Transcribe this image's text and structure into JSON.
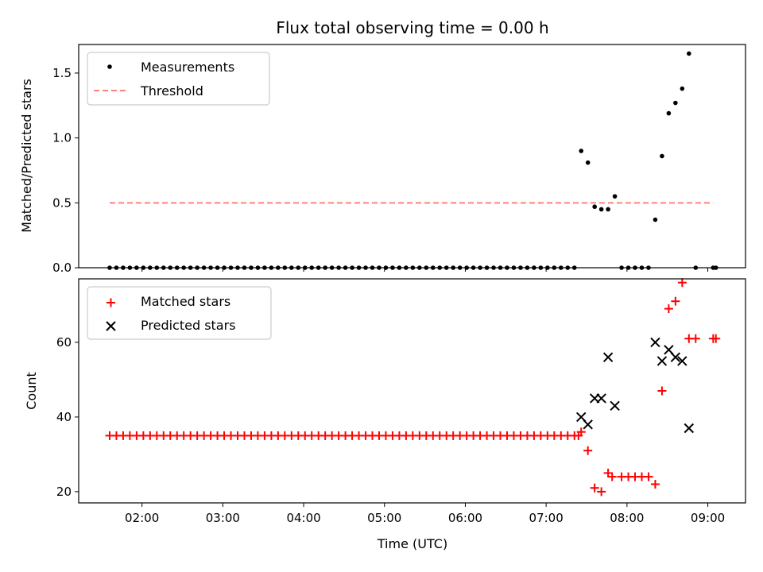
{
  "chart_data": [
    {
      "type": "scatter",
      "title": "Flux total observing time = 0.00 h",
      "xlabel": "",
      "ylabel": "Matched/Predicted stars",
      "xlim": [
        "01:13",
        "09:28"
      ],
      "ylim": [
        0,
        1.72
      ],
      "yticks": [
        "0.0",
        "0.5",
        "1.0",
        "1.5"
      ],
      "legend": "top-left",
      "colors": {
        "measurements": "#000000",
        "threshold": "#ff7f7f"
      },
      "series": [
        {
          "name": "Measurements",
          "marker": "dot",
          "x_zero": [
            "01:36",
            "01:41",
            "01:46",
            "01:51",
            "01:56",
            "02:01",
            "02:06",
            "02:11",
            "02:16",
            "02:21",
            "02:26",
            "02:31",
            "02:36",
            "02:41",
            "02:46",
            "02:51",
            "02:56",
            "03:01",
            "03:06",
            "03:11",
            "03:16",
            "03:21",
            "03:26",
            "03:31",
            "03:36",
            "03:41",
            "03:46",
            "03:51",
            "03:56",
            "04:01",
            "04:06",
            "04:11",
            "04:16",
            "04:21",
            "04:26",
            "04:31",
            "04:36",
            "04:41",
            "04:46",
            "04:51",
            "04:56",
            "05:01",
            "05:06",
            "05:11",
            "05:16",
            "05:21",
            "05:26",
            "05:31",
            "05:36",
            "05:41",
            "05:46",
            "05:51",
            "05:56",
            "06:01",
            "06:06",
            "06:11",
            "06:16",
            "06:21",
            "06:26",
            "06:31",
            "06:36",
            "06:41",
            "06:46",
            "06:51",
            "06:56",
            "07:01",
            "07:06",
            "07:11",
            "07:16",
            "07:21",
            "07:56",
            "08:01",
            "08:06",
            "08:11",
            "08:16",
            "08:51",
            "09:04",
            "09:06"
          ],
          "points": [
            {
              "x": "07:26",
              "y": 0.9
            },
            {
              "x": "07:31",
              "y": 0.81
            },
            {
              "x": "07:36",
              "y": 0.47
            },
            {
              "x": "07:41",
              "y": 0.45
            },
            {
              "x": "07:46",
              "y": 0.45
            },
            {
              "x": "07:51",
              "y": 0.55
            },
            {
              "x": "08:21",
              "y": 0.37
            },
            {
              "x": "08:26",
              "y": 0.86
            },
            {
              "x": "08:31",
              "y": 1.19
            },
            {
              "x": "08:36",
              "y": 1.27
            },
            {
              "x": "08:41",
              "y": 1.38
            },
            {
              "x": "08:46",
              "y": 1.65
            }
          ]
        },
        {
          "name": "Threshold",
          "marker": "dashed-line",
          "x": [
            "01:36",
            "09:04"
          ],
          "y": [
            0.5,
            0.5
          ]
        }
      ]
    },
    {
      "type": "scatter",
      "title": "",
      "xlabel": "Time (UTC)",
      "ylabel": "Count",
      "xlim": [
        "01:13",
        "09:28"
      ],
      "ylim": [
        17,
        77
      ],
      "yticks": [
        "20",
        "40",
        "60"
      ],
      "xticks": [
        "02:00",
        "03:00",
        "04:00",
        "05:00",
        "06:00",
        "07:00",
        "08:00",
        "09:00"
      ],
      "legend": "top-left",
      "colors": {
        "matched": "#ff0000",
        "predicted": "#000000"
      },
      "series": [
        {
          "name": "Matched stars",
          "marker": "plus",
          "baseline_value": 35,
          "baseline_x": [
            "01:36",
            "01:41",
            "01:46",
            "01:51",
            "01:56",
            "02:01",
            "02:06",
            "02:11",
            "02:16",
            "02:21",
            "02:26",
            "02:31",
            "02:36",
            "02:41",
            "02:46",
            "02:51",
            "02:56",
            "03:01",
            "03:06",
            "03:11",
            "03:16",
            "03:21",
            "03:26",
            "03:31",
            "03:36",
            "03:41",
            "03:46",
            "03:51",
            "03:56",
            "04:01",
            "04:06",
            "04:11",
            "04:16",
            "04:21",
            "04:26",
            "04:31",
            "04:36",
            "04:41",
            "04:46",
            "04:51",
            "04:56",
            "05:01",
            "05:06",
            "05:11",
            "05:16",
            "05:21",
            "05:26",
            "05:31",
            "05:36",
            "05:41",
            "05:46",
            "05:51",
            "05:56",
            "06:01",
            "06:06",
            "06:11",
            "06:16",
            "06:21",
            "06:26",
            "06:31",
            "06:36",
            "06:41",
            "06:46",
            "06:51",
            "06:56",
            "07:01",
            "07:06",
            "07:11",
            "07:16",
            "07:21",
            "07:24"
          ],
          "points": [
            {
              "x": "07:26",
              "y": 36
            },
            {
              "x": "07:31",
              "y": 31
            },
            {
              "x": "07:36",
              "y": 21
            },
            {
              "x": "07:41",
              "y": 20
            },
            {
              "x": "07:46",
              "y": 25
            },
            {
              "x": "07:49",
              "y": 24
            },
            {
              "x": "07:56",
              "y": 24
            },
            {
              "x": "08:01",
              "y": 24
            },
            {
              "x": "08:06",
              "y": 24
            },
            {
              "x": "08:11",
              "y": 24
            },
            {
              "x": "08:16",
              "y": 24
            },
            {
              "x": "08:21",
              "y": 22
            },
            {
              "x": "08:26",
              "y": 47
            },
            {
              "x": "08:31",
              "y": 69
            },
            {
              "x": "08:36",
              "y": 71
            },
            {
              "x": "08:41",
              "y": 76
            },
            {
              "x": "08:46",
              "y": 61
            },
            {
              "x": "08:51",
              "y": 61
            },
            {
              "x": "09:04",
              "y": 61
            },
            {
              "x": "09:06",
              "y": 61
            }
          ]
        },
        {
          "name": "Predicted stars",
          "marker": "x",
          "points": [
            {
              "x": "07:26",
              "y": 40
            },
            {
              "x": "07:31",
              "y": 38
            },
            {
              "x": "07:36",
              "y": 45
            },
            {
              "x": "07:41",
              "y": 45
            },
            {
              "x": "07:46",
              "y": 56
            },
            {
              "x": "07:51",
              "y": 43
            },
            {
              "x": "08:21",
              "y": 60
            },
            {
              "x": "08:26",
              "y": 55
            },
            {
              "x": "08:31",
              "y": 58
            },
            {
              "x": "08:36",
              "y": 56
            },
            {
              "x": "08:41",
              "y": 55
            },
            {
              "x": "08:46",
              "y": 37
            }
          ]
        }
      ]
    }
  ]
}
